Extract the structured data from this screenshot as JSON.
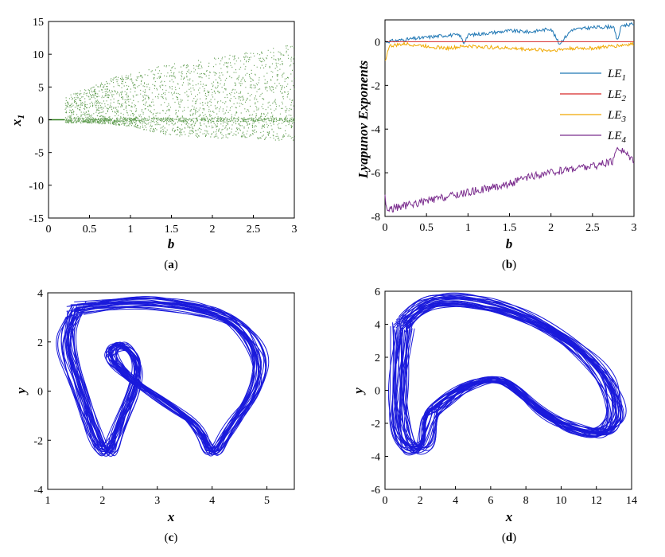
{
  "chart_data": [
    {
      "panel": "a",
      "type": "scatter",
      "caption_open": "(",
      "caption_letter": "a",
      "caption_close": ")",
      "xlabel": "b",
      "ylabel_main": "x",
      "ylabel_sub": "1",
      "xlim": [
        0,
        3
      ],
      "ylim": [
        -15,
        15
      ],
      "xticks": [
        0,
        0.5,
        1,
        1.5,
        2,
        2.5,
        3
      ],
      "yticks": [
        -15,
        -10,
        -5,
        0,
        5,
        10,
        15
      ],
      "color": "#2e7d1a",
      "bands": [
        {
          "b": 0.2,
          "low": -0.5,
          "high": 3.5
        },
        {
          "b": 0.5,
          "low": -0.5,
          "high": 5.0
        },
        {
          "b": 0.8,
          "low": -0.8,
          "high": 6.5
        },
        {
          "b": 1.0,
          "low": -1.0,
          "high": 7.0
        },
        {
          "b": 1.3,
          "low": -2.0,
          "high": 8.0
        },
        {
          "b": 1.5,
          "low": -2.5,
          "high": 8.5
        },
        {
          "b": 2.0,
          "low": -2.8,
          "high": 9.5
        },
        {
          "b": 2.5,
          "low": -3.0,
          "high": 10.5
        },
        {
          "b": 3.0,
          "low": -3.2,
          "high": 11.5
        }
      ]
    },
    {
      "panel": "b",
      "type": "line",
      "caption_open": "(",
      "caption_letter": "b",
      "caption_close": ")",
      "xlabel": "b",
      "ylabel": "Lyapunov Exponents",
      "xlim": [
        0,
        3
      ],
      "ylim": [
        -8,
        1
      ],
      "xticks": [
        0,
        0.5,
        1,
        1.5,
        2,
        2.5,
        3
      ],
      "yticks": [
        -8,
        -6,
        -4,
        -2,
        0
      ],
      "series": [
        {
          "name_main": "LE",
          "name_sub": "1",
          "color": "#1f77b4",
          "x": [
            0,
            0.25,
            0.5,
            0.75,
            0.9,
            0.95,
            1.0,
            1.25,
            1.5,
            1.75,
            2.0,
            2.1,
            2.25,
            2.5,
            2.75,
            2.8,
            2.85,
            3.0
          ],
          "y": [
            0.0,
            0.1,
            0.2,
            0.3,
            0.3,
            -0.05,
            0.3,
            0.4,
            0.5,
            0.45,
            0.6,
            -0.1,
            0.55,
            0.65,
            0.7,
            0.05,
            0.75,
            0.8
          ]
        },
        {
          "name_main": "LE",
          "name_sub": "2",
          "color": "#d62728",
          "x": [
            0,
            3
          ],
          "y": [
            0.0,
            0.0
          ]
        },
        {
          "name_main": "LE",
          "name_sub": "3",
          "color": "#f0a800",
          "x": [
            0,
            0.05,
            0.25,
            0.5,
            0.75,
            1.0,
            1.25,
            1.5,
            1.75,
            2.0,
            2.25,
            2.5,
            2.75,
            3.0
          ],
          "y": [
            -0.9,
            -0.2,
            -0.1,
            -0.2,
            -0.3,
            -0.2,
            -0.25,
            -0.3,
            -0.35,
            -0.4,
            -0.3,
            -0.3,
            -0.2,
            -0.1
          ]
        },
        {
          "name_main": "LE",
          "name_sub": "4",
          "color": "#7b2d8e",
          "x": [
            0,
            0.02,
            0.25,
            0.5,
            0.75,
            1.0,
            1.25,
            1.5,
            1.75,
            2.0,
            2.25,
            2.5,
            2.75,
            2.8,
            3.0
          ],
          "y": [
            -7.0,
            -7.7,
            -7.5,
            -7.3,
            -7.1,
            -6.9,
            -6.7,
            -6.5,
            -6.2,
            -6.0,
            -5.8,
            -5.7,
            -5.5,
            -4.8,
            -5.4
          ]
        }
      ]
    },
    {
      "panel": "c",
      "type": "line",
      "caption_open": "(",
      "caption_letter": "c",
      "caption_close": ")",
      "xlabel": "x",
      "ylabel": "y",
      "xlim": [
        1,
        5.5
      ],
      "ylim": [
        -4,
        4
      ],
      "xticks": [
        1,
        2,
        3,
        4,
        5
      ],
      "yticks": [
        -4,
        -2,
        0,
        2,
        4
      ],
      "color": "#1a1adb",
      "attractor": "double-scroll phase portrait (y vs x)",
      "path": [
        [
          1.5,
          3.3
        ],
        [
          2.5,
          3.7
        ],
        [
          3.5,
          3.5
        ],
        [
          4.4,
          3.0
        ],
        [
          4.9,
          1.5
        ],
        [
          4.8,
          0
        ],
        [
          4.3,
          -1.5
        ],
        [
          4.0,
          -2.8
        ],
        [
          3.8,
          -1.5
        ],
        [
          3.2,
          -0.5
        ],
        [
          2.5,
          0.5
        ],
        [
          2.1,
          1.5
        ],
        [
          2.3,
          2.0
        ],
        [
          2.7,
          1.2
        ],
        [
          2.6,
          0
        ],
        [
          2.3,
          -1.5
        ],
        [
          2.1,
          -2.7
        ],
        [
          1.9,
          -2.0
        ],
        [
          1.6,
          0
        ],
        [
          1.3,
          2.0
        ],
        [
          1.5,
          3.3
        ]
      ]
    },
    {
      "panel": "d",
      "type": "line",
      "caption_open": "(",
      "caption_letter": "d",
      "caption_close": ")",
      "xlabel": "x",
      "ylabel": "y",
      "xlim": [
        0,
        14
      ],
      "ylim": [
        -6,
        6
      ],
      "xticks": [
        0,
        2,
        4,
        6,
        8,
        10,
        12,
        14
      ],
      "yticks": [
        -6,
        -4,
        -2,
        0,
        2,
        4,
        6
      ],
      "color": "#1a1adb",
      "attractor": "single-scroll phase portrait (y vs x)",
      "path": [
        [
          1.0,
          4.0
        ],
        [
          2.0,
          5.3
        ],
        [
          4.0,
          5.6
        ],
        [
          7.0,
          5.0
        ],
        [
          10.0,
          3.5
        ],
        [
          12.5,
          1.0
        ],
        [
          13.3,
          -1.5
        ],
        [
          12.5,
          -2.7
        ],
        [
          11.0,
          -2.5
        ],
        [
          9.0,
          -1.5
        ],
        [
          7.0,
          0.5
        ],
        [
          6.0,
          0.7
        ],
        [
          4.5,
          0.3
        ],
        [
          3.0,
          -1.0
        ],
        [
          2.5,
          -1.5
        ],
        [
          2.3,
          -3.5
        ],
        [
          1.5,
          -3.7
        ],
        [
          0.9,
          -2.5
        ],
        [
          0.8,
          0
        ],
        [
          1.0,
          4.0
        ]
      ]
    }
  ]
}
